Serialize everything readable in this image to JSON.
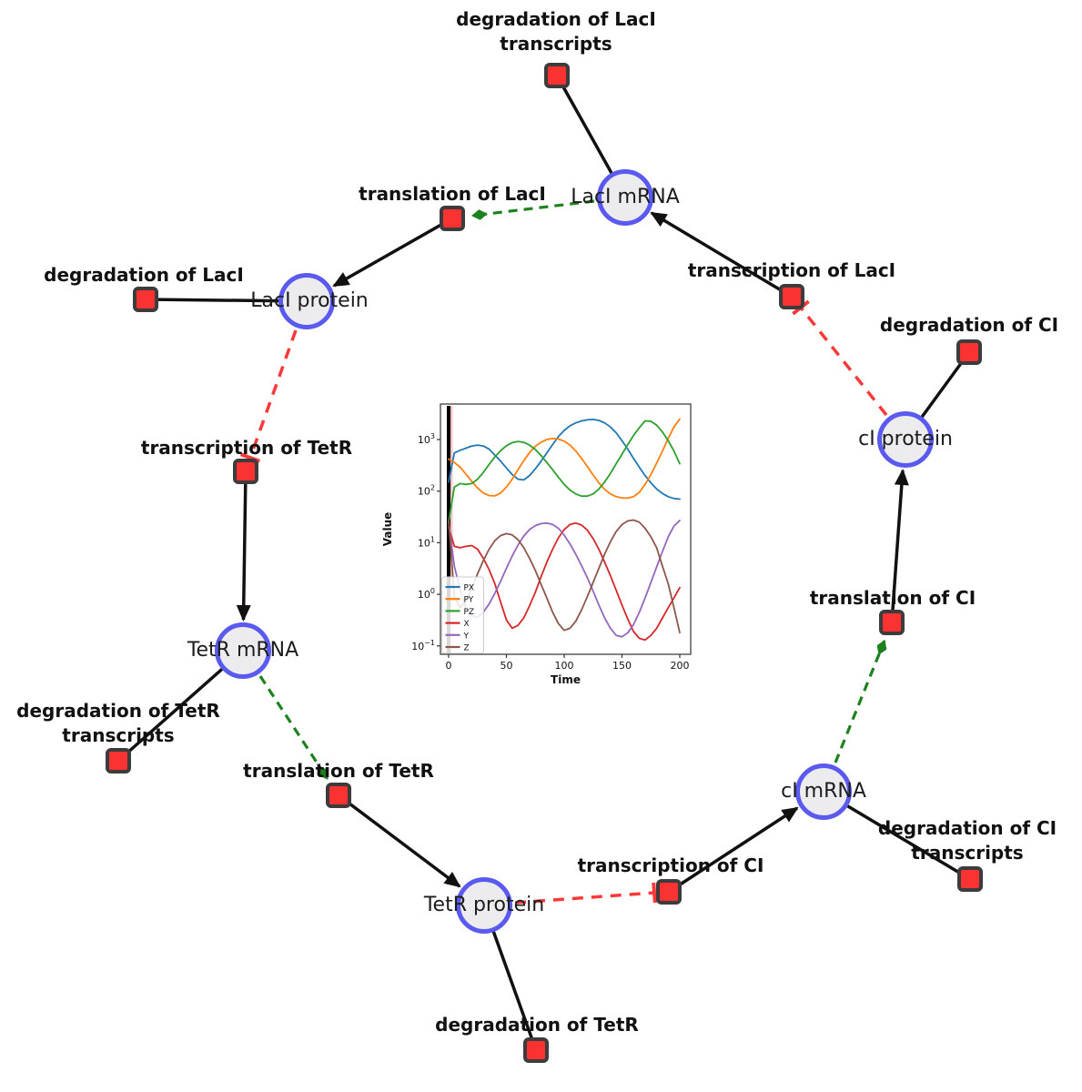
{
  "diagram": {
    "species": [
      {
        "id": "laci-mrna",
        "label": "LacI mRNA"
      },
      {
        "id": "laci-protein",
        "label": "LacI protein"
      },
      {
        "id": "tetr-mrna",
        "label": "TetR mRNA"
      },
      {
        "id": "tetr-protein",
        "label": "TetR protein"
      },
      {
        "id": "ci-mrna",
        "label": "cI mRNA"
      },
      {
        "id": "ci-protein",
        "label": "cI protein"
      }
    ],
    "reactions": [
      {
        "id": "degradation-laci-transcripts",
        "label": "degradation of LacI transcripts"
      },
      {
        "id": "translation-laci",
        "label": "translation of LacI"
      },
      {
        "id": "degradation-laci",
        "label": "degradation of LacI"
      },
      {
        "id": "transcription-laci",
        "label": "transcription of LacI"
      },
      {
        "id": "degradation-ci",
        "label": "degradation of CI"
      },
      {
        "id": "transcription-tetr",
        "label": "transcription of TetR"
      },
      {
        "id": "translation-ci",
        "label": "translation of CI"
      },
      {
        "id": "degradation-tetr-transcripts",
        "label": "degradation of TetR transcripts"
      },
      {
        "id": "translation-tetr",
        "label": "translation of TetR"
      },
      {
        "id": "degradation-ci-transcripts",
        "label": "degradation of CI transcripts"
      },
      {
        "id": "transcription-ci",
        "label": "transcription of CI"
      },
      {
        "id": "degradation-tetr",
        "label": "degradation of TetR"
      }
    ],
    "colors": {
      "species_fill": "#ececee",
      "species_border": "#5a5af0",
      "reaction_fill": "#fa3232",
      "reaction_border": "#3c3c3c",
      "plain_edge": "#111111",
      "activation_edge": "#1d821d",
      "inhibition_edge": "#fa3a3a"
    }
  },
  "chart_data": {
    "type": "line",
    "title": "",
    "xlabel": "Time",
    "ylabel": "Value",
    "x_ticks": [
      0,
      50,
      100,
      150,
      200
    ],
    "y_scale": "log",
    "y_tick_exponents": [
      -1,
      0,
      1,
      2,
      3
    ],
    "xlim": [
      -8,
      208
    ],
    "ylim": [
      0.07,
      5000
    ],
    "legend_position": "lower left",
    "vline_x": 0,
    "x": [
      0,
      5,
      10,
      15,
      20,
      25,
      30,
      35,
      40,
      45,
      50,
      55,
      60,
      65,
      70,
      75,
      80,
      85,
      90,
      95,
      100,
      105,
      110,
      115,
      120,
      125,
      130,
      135,
      140,
      145,
      150,
      155,
      160,
      165,
      170,
      175,
      180,
      185,
      190,
      195,
      200
    ],
    "series": [
      {
        "name": "PX",
        "color": "#1f77b4",
        "values": [
          150,
          550,
          620,
          680,
          750,
          780,
          750,
          650,
          500,
          380,
          280,
          210,
          170,
          165,
          200,
          270,
          380,
          550,
          800,
          1150,
          1500,
          1850,
          2100,
          2300,
          2400,
          2450,
          2350,
          2100,
          1750,
          1350,
          950,
          650,
          430,
          290,
          200,
          145,
          110,
          90,
          78,
          72,
          70
        ]
      },
      {
        "name": "PY",
        "color": "#ff7f0e",
        "values": [
          420,
          360,
          290,
          215,
          155,
          115,
          92,
          82,
          81,
          92,
          120,
          170,
          260,
          390,
          560,
          740,
          890,
          1000,
          1050,
          1020,
          930,
          780,
          600,
          430,
          300,
          205,
          145,
          108,
          88,
          78,
          74,
          73,
          78,
          95,
          135,
          210,
          350,
          600,
          1050,
          1750,
          2500
        ]
      },
      {
        "name": "PZ",
        "color": "#2ca02c",
        "values": [
          25,
          120,
          140,
          135,
          140,
          170,
          230,
          330,
          460,
          610,
          760,
          870,
          920,
          880,
          780,
          640,
          490,
          360,
          260,
          185,
          135,
          105,
          88,
          80,
          80,
          88,
          110,
          150,
          220,
          340,
          520,
          800,
          1200,
          1700,
          2300,
          2250,
          1900,
          1400,
          950,
          600,
          340
        ]
      },
      {
        "name": "X",
        "color": "#d62728",
        "values": [
          20,
          8.5,
          8,
          8.5,
          8.8,
          7.5,
          5,
          3,
          1.6,
          0.7,
          0.32,
          0.22,
          0.25,
          0.35,
          0.6,
          1.1,
          2.2,
          4.2,
          7.5,
          12.5,
          18,
          22.5,
          24,
          22,
          17.5,
          12,
          7.5,
          4.2,
          2.3,
          1.2,
          0.62,
          0.33,
          0.19,
          0.14,
          0.13,
          0.16,
          0.22,
          0.35,
          0.55,
          0.85,
          1.35
        ]
      },
      {
        "name": "Y",
        "color": "#9467bd",
        "values": [
          25,
          3.5,
          1.2,
          0.55,
          0.38,
          0.36,
          0.45,
          0.65,
          1.05,
          1.8,
          3.2,
          5.5,
          9,
          13.5,
          18,
          21.5,
          23.5,
          24,
          22.5,
          19,
          14,
          9.5,
          6,
          3.6,
          2.1,
          1.15,
          0.62,
          0.35,
          0.22,
          0.16,
          0.15,
          0.18,
          0.26,
          0.45,
          0.85,
          1.7,
          3.4,
          6.8,
          13,
          21,
          27
        ]
      },
      {
        "name": "Z",
        "color": "#8c564b",
        "values": [
          28,
          0.9,
          0.55,
          0.75,
          1.3,
          2.5,
          4.5,
          7.5,
          11,
          13.8,
          15,
          14.2,
          11.5,
          8,
          5,
          2.9,
          1.55,
          0.85,
          0.45,
          0.27,
          0.2,
          0.22,
          0.3,
          0.5,
          0.9,
          1.7,
          3.2,
          6,
          10.5,
          16.5,
          22.5,
          26.5,
          27.5,
          25,
          19,
          13,
          8,
          3.5,
          1.6,
          0.55,
          0.18
        ]
      }
    ]
  }
}
